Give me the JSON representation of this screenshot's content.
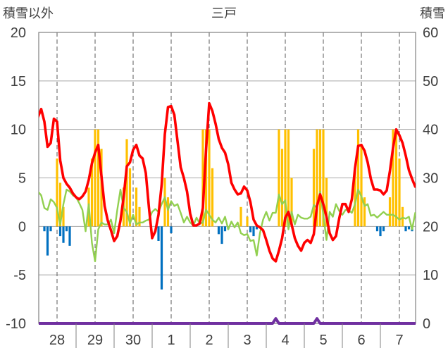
{
  "chart_data": {
    "type": "line",
    "title": "三戸",
    "ylabel": "積雪以外",
    "y2label": "積雪",
    "ylim": [
      -10,
      20
    ],
    "y2lim": [
      0,
      60
    ],
    "yticks": [
      20,
      15,
      10,
      5,
      0,
      -5,
      -10
    ],
    "y2ticks": [
      60,
      50,
      40,
      30,
      20,
      10,
      0
    ],
    "grid": true,
    "categories": [
      "28",
      "29",
      "30",
      "1",
      "2",
      "3",
      "4",
      "5",
      "6",
      "7"
    ],
    "series": [
      {
        "type": "bar",
        "axis": "left",
        "color": "#ffc000",
        "values": [
          [
            0,
            0,
            0,
            0,
            0,
            0,
            7,
            4.5,
            2,
            0,
            0,
            0
          ],
          [
            0,
            0,
            0,
            0,
            4,
            7,
            10,
            10,
            8,
            0,
            0,
            0
          ],
          [
            0,
            0,
            0,
            4,
            9,
            6,
            0,
            4,
            2,
            0,
            0,
            0
          ],
          [
            0,
            0,
            0,
            0,
            5,
            3,
            0,
            0,
            0,
            0,
            0,
            0
          ],
          [
            0,
            0,
            0,
            0,
            10,
            10,
            10,
            6,
            0,
            0,
            0,
            0
          ],
          [
            0,
            0,
            0,
            0,
            2,
            0,
            1,
            0,
            0,
            0,
            0,
            0
          ],
          [
            0,
            0,
            0,
            0,
            10,
            8,
            10,
            10,
            5,
            0,
            0,
            0
          ],
          [
            0,
            0,
            0,
            8,
            10,
            10,
            10,
            5,
            0,
            0,
            0,
            0
          ],
          [
            0,
            0,
            0,
            0,
            6,
            10,
            8.5,
            3,
            0,
            0,
            0,
            0
          ],
          [
            0,
            0,
            0,
            3,
            10,
            10,
            7,
            2,
            0,
            0,
            0,
            0
          ]
        ]
      },
      {
        "type": "bar",
        "axis": "left",
        "color": "#0070c0",
        "values": [
          [
            0,
            0,
            -0.5,
            -3.0,
            -0.5,
            0,
            0,
            -1.0,
            -1.7,
            -0.5,
            -2.0,
            0
          ],
          [
            0,
            0,
            0,
            0,
            0,
            0,
            0,
            0,
            0,
            0,
            0,
            0
          ],
          [
            0,
            0,
            0,
            0,
            0,
            0,
            0,
            0,
            0,
            0,
            0,
            0
          ],
          [
            0,
            0,
            -1.5,
            -6.5,
            0,
            0,
            -0.7,
            0,
            0,
            0,
            0,
            0
          ],
          [
            0,
            0,
            0,
            0,
            0,
            0,
            0,
            0,
            0,
            -0.8,
            -1.8,
            -0.5
          ],
          [
            -0.3,
            0,
            0,
            0,
            0,
            0,
            0,
            -0.6,
            -1.0,
            -0.3,
            0,
            0
          ],
          [
            0,
            0,
            0,
            0,
            0,
            0,
            0,
            0,
            0,
            0,
            0,
            0
          ],
          [
            0,
            0,
            0,
            0,
            0,
            0,
            0,
            0,
            0,
            0,
            0,
            0
          ],
          [
            0,
            0,
            0,
            0,
            0,
            0,
            0,
            0,
            0,
            0,
            0,
            -0.5
          ],
          [
            -1.0,
            -0.5,
            0,
            0,
            0,
            0,
            0,
            0,
            -0.5,
            -0.3,
            -0.5,
            0
          ]
        ]
      },
      {
        "type": "line",
        "axis": "left",
        "color": "#92d050",
        "values": [
          [
            3.6,
            3.2,
            1.9,
            1.7,
            2.8,
            2.5,
            1.9,
            0.2,
            2.3,
            3.8,
            3.6,
            3.2
          ],
          [
            3.0,
            2.4,
            1.7,
            -0.5,
            2.3,
            -1.7,
            -3.6,
            -0.3,
            0.4,
            0.2,
            0.2,
            0.7
          ],
          [
            -0.7,
            1.7,
            3.8,
            1.9,
            1.5,
            0.3,
            1.2,
            0.2,
            0.4,
            0.4,
            0.6,
            0.7
          ],
          [
            1.5,
            1.8,
            1.5,
            2.3,
            3.0,
            1.7,
            2.6,
            2.1,
            2.3,
            1.4,
            0.4,
            1.0
          ],
          [
            0.4,
            0.1,
            0.9,
            0.3,
            0.4,
            1.7,
            1.2,
            0.7,
            0.4,
            0.9,
            0.3,
            1.0
          ],
          [
            -0.3,
            0.5,
            -0.1,
            0.4,
            -0.7,
            -0.9,
            -0.8,
            -1.5,
            -1.4,
            -3.0,
            -0.7,
            0.7
          ],
          [
            1.5,
            0.6,
            1.4,
            1.4,
            3.3,
            2.3,
            2.7,
            -0.3,
            1.5,
            0.2,
            1.2,
            0.9
          ],
          [
            0.8,
            0.8,
            1.0,
            2.2,
            1.9,
            3.6,
            1.2,
            -1.4,
            1.5,
            1.0,
            2.3,
            1.6
          ],
          [
            1.2,
            1.7,
            1.7,
            1.4,
            2.3,
            3.8,
            3.1,
            2.1,
            2.3,
            1.1,
            1.2,
            0.9
          ],
          [
            1.2,
            1.5,
            1.2,
            1.2,
            1.2,
            1.0,
            0.7,
            0.9,
            0.8,
            1.0,
            -0.3,
            1.4
          ]
        ]
      },
      {
        "type": "line",
        "axis": "left",
        "color": "#ff0000",
        "values": [
          [
            11.3,
            12.1,
            10.8,
            8.2,
            8.6,
            11.1,
            10.8,
            6.8,
            5.0,
            4.4,
            4.0,
            3.4
          ],
          [
            3.0,
            2.8,
            3.1,
            3.6,
            4.8,
            6.5,
            7.6,
            8.4,
            5.2,
            2.1,
            0.6,
            -0.4
          ],
          [
            -1.5,
            -1.0,
            0.6,
            3.0,
            6.2,
            6.6,
            7.9,
            8.4,
            7.3,
            7.0,
            5.5,
            1.9
          ],
          [
            -1.2,
            -0.5,
            1.2,
            4.3,
            9.5,
            12.3,
            12.4,
            11.5,
            8.8,
            6.1,
            5.0,
            3.6
          ],
          [
            1.3,
            0.1,
            0.1,
            0.3,
            1.9,
            7.9,
            12.7,
            11.9,
            10.6,
            9.0,
            8.1,
            7.6
          ],
          [
            6.4,
            4.5,
            3.8,
            3.3,
            3.4,
            4.1,
            3.7,
            2.5,
            0.7,
            0.1,
            -0.1,
            -0.4
          ],
          [
            -1.4,
            -2.5,
            -3.3,
            -3.6,
            -2.5,
            -1.2,
            0.9,
            1.5,
            0.2,
            -1.2,
            -2.0,
            -2.5
          ],
          [
            -1.7,
            -1.4,
            -1.7,
            -0.8,
            2.1,
            3.3,
            2.3,
            1.0,
            -0.7,
            -1.4,
            -1.0,
            0.8
          ],
          [
            2.3,
            2.3,
            1.5,
            2.8,
            6.0,
            8.3,
            8.4,
            7.8,
            6.6,
            4.9,
            3.8,
            3.8
          ],
          [
            3.7,
            3.3,
            3.7,
            5.7,
            8.1,
            10.0,
            9.4,
            8.6,
            7.3,
            5.8,
            4.9,
            4.1
          ]
        ]
      },
      {
        "type": "line",
        "axis": "right",
        "color": "#7030a0",
        "values": [
          [
            0,
            0,
            0,
            0,
            0,
            0,
            0,
            0,
            0,
            0,
            0,
            0
          ],
          [
            0,
            0,
            0,
            0,
            0,
            0,
            0,
            0,
            0,
            0,
            0,
            0
          ],
          [
            0,
            0,
            0,
            0,
            0,
            0,
            0,
            0,
            0,
            0,
            0,
            0
          ],
          [
            0,
            0,
            0,
            0,
            0,
            0,
            0,
            0,
            0,
            0,
            0,
            0
          ],
          [
            0,
            0,
            0,
            0,
            0,
            0,
            0,
            0,
            0,
            0,
            0,
            0
          ],
          [
            0,
            0,
            0,
            0,
            0,
            0,
            0,
            0,
            0,
            0,
            0,
            0
          ],
          [
            0,
            0,
            0,
            1,
            0,
            0,
            0,
            0,
            0,
            0,
            0,
            0
          ],
          [
            0,
            0,
            0,
            0,
            1,
            0,
            0,
            0,
            0,
            0,
            0,
            0
          ],
          [
            0,
            0,
            0,
            0,
            0,
            0,
            0,
            0,
            0,
            0,
            0,
            0
          ],
          [
            0,
            0,
            0,
            0,
            0,
            0,
            0,
            0,
            0,
            0,
            0,
            0
          ]
        ]
      }
    ]
  }
}
